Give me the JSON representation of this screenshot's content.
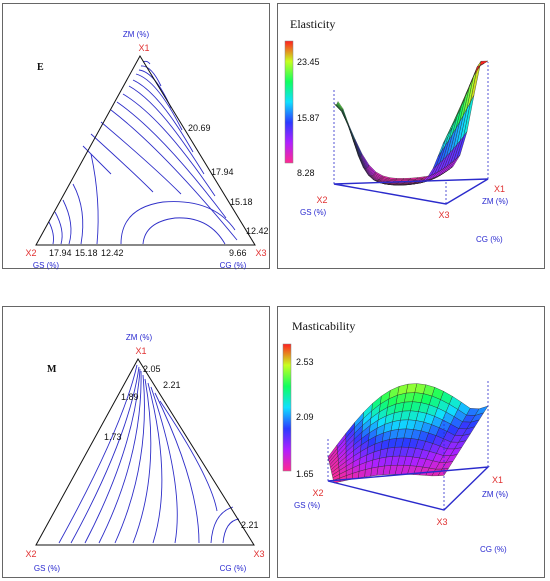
{
  "chart_data": [
    {
      "type": "ternary-contour",
      "panel_label": "E",
      "vertices": [
        {
          "id": "X1",
          "axis": "ZM (%)"
        },
        {
          "id": "X2",
          "axis": "GS (%)"
        },
        {
          "id": "X3",
          "axis": "CG (%)"
        }
      ],
      "contour_levels": [
        9.66,
        12.42,
        15.18,
        17.94,
        20.69
      ],
      "contour_labels": [
        "20.69",
        "17.94",
        "15.18",
        "12.42",
        "9.66",
        "17.94",
        "15.18",
        "12.42"
      ]
    },
    {
      "type": "surface-3d",
      "title": "Elasticity",
      "colorbar_ticks": [
        8.28,
        15.87,
        23.45
      ],
      "axes": [
        {
          "id": "X1",
          "axis": "ZM (%)"
        },
        {
          "id": "X2",
          "axis": "GS (%)"
        },
        {
          "id": "X3",
          "axis": "CG (%)"
        }
      ]
    },
    {
      "type": "ternary-contour",
      "panel_label": "M",
      "vertices": [
        {
          "id": "X1",
          "axis": "ZM (%)"
        },
        {
          "id": "X2",
          "axis": "GS (%)"
        },
        {
          "id": "X3",
          "axis": "CG (%)"
        }
      ],
      "contour_levels": [
        1.73,
        1.89,
        2.05,
        2.21
      ],
      "contour_labels": [
        "2.05",
        "2.21",
        "1.89",
        "1.73",
        "2.21"
      ]
    },
    {
      "type": "surface-3d",
      "title": "Masticability",
      "colorbar_ticks": [
        1.65,
        2.09,
        2.53
      ],
      "axes": [
        {
          "id": "X1",
          "axis": "ZM (%)"
        },
        {
          "id": "X2",
          "axis": "GS (%)"
        },
        {
          "id": "X3",
          "axis": "CG (%)"
        }
      ]
    }
  ],
  "colors": {
    "contour_line": "#2e2ec8",
    "vertex_label": "#e03030",
    "axis_label": "#2a2ad0",
    "colormap": [
      "#ff2a90",
      "#b020ff",
      "#2b3bff",
      "#10e0ff",
      "#10ff60",
      "#c8ff20",
      "#ff2020"
    ]
  }
}
